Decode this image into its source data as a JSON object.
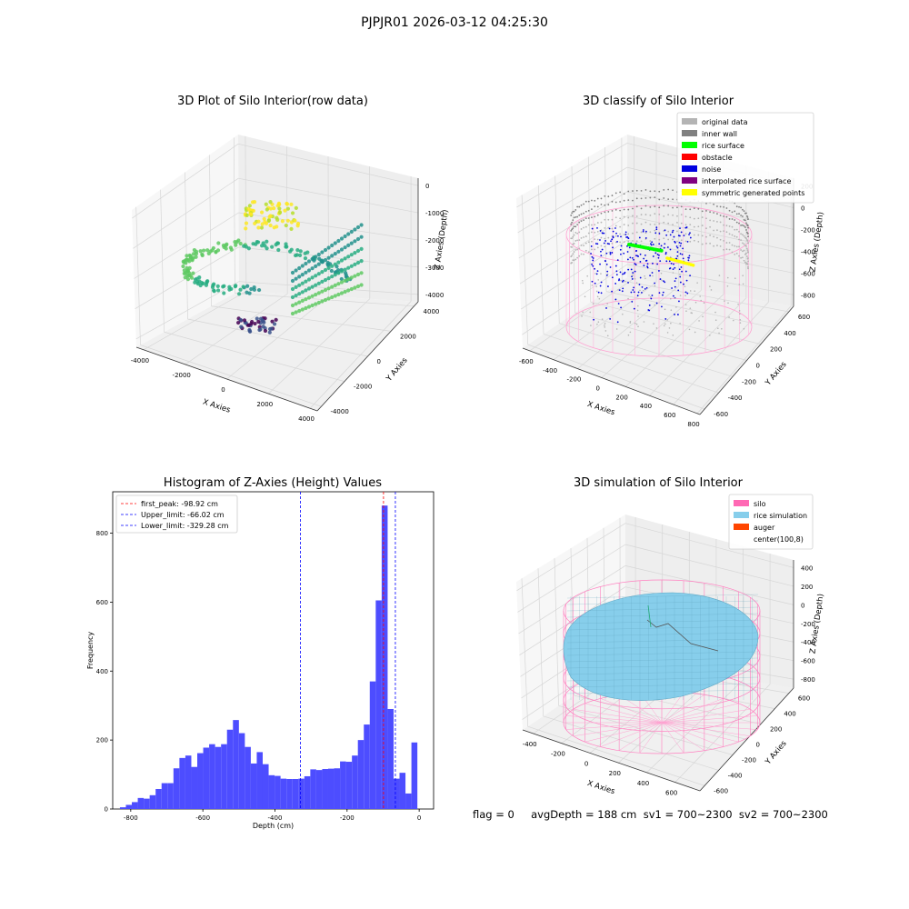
{
  "suptitle": "PJPJR01 2026-03-12 04:25:30",
  "footer": "flag = 0     avgDepth = 188 cm  sv1 = 700~2300  sv2 = 700~2300",
  "chart_data": [
    {
      "type": "scatter",
      "title": "3D Plot of Silo Interior(row data)",
      "xlabel": "X Axies",
      "ylabel": "Y Axies",
      "zlabel": "Z Axies (Depth)",
      "x_ticks": [
        -4000,
        -2000,
        0,
        2000,
        4000
      ],
      "y_ticks": [
        -4000,
        -2000,
        0,
        2000,
        4000
      ],
      "z_ticks": [
        0,
        -1000,
        -2000,
        -3000,
        -4000
      ],
      "colormap": "viridis"
    },
    {
      "type": "scatter",
      "title": "3D classify of Silo Interior",
      "xlabel": "X Axies",
      "ylabel": "Y Axies",
      "zlabel": "Z Axies (Depth)",
      "x_ticks": [
        -600,
        -400,
        -200,
        0,
        200,
        400,
        600,
        800
      ],
      "y_ticks": [
        -600,
        -400,
        -200,
        0,
        200,
        400,
        600
      ],
      "z_ticks": [
        200,
        0,
        -200,
        -400,
        -600,
        -800
      ],
      "legend_position": "top-right",
      "legend": [
        {
          "label": "original data",
          "color": "#b4b4b4"
        },
        {
          "label": "inner wall",
          "color": "#808080"
        },
        {
          "label": "rice surface",
          "color": "#00ff00"
        },
        {
          "label": "obstacle",
          "color": "#ff0000"
        },
        {
          "label": "noise",
          "color": "#0000e0"
        },
        {
          "label": "interpolated rice surface",
          "color": "#800080"
        },
        {
          "label": "symmetric generated points",
          "color": "#ffff00"
        }
      ]
    },
    {
      "type": "bar",
      "title": "Histogram of Z-Axies (Height) Values",
      "xlabel": "Depth (cm)",
      "ylabel": "Frequency",
      "xlim": [
        -850,
        40
      ],
      "ylim": [
        0,
        920
      ],
      "x_ticks": [
        -800,
        -600,
        -400,
        -200,
        0
      ],
      "y_ticks": [
        0,
        200,
        400,
        600,
        800
      ],
      "bar_color": "#4d4dff",
      "bin_start": -830,
      "bin_width": 16.5,
      "values": [
        5,
        12,
        20,
        32,
        30,
        40,
        58,
        75,
        75,
        118,
        148,
        155,
        122,
        162,
        178,
        188,
        180,
        188,
        230,
        258,
        220,
        180,
        132,
        165,
        130,
        98,
        96,
        88,
        87,
        87,
        88,
        95,
        115,
        113,
        116,
        117,
        118,
        138,
        137,
        155,
        200,
        245,
        370,
        605,
        880,
        290,
        88,
        105,
        45,
        193
      ],
      "vlines": [
        {
          "label": "first_peak: -98.92 cm",
          "x": -98.92,
          "color": "#ff0000"
        },
        {
          "label": "Upper_limit: -66.02 cm",
          "x": -66.02,
          "color": "#0000ff"
        },
        {
          "label": "Lower_limit: -329.28 cm",
          "x": -329.28,
          "color": "#0000ff"
        }
      ],
      "legend_position": "top-left"
    },
    {
      "type": "surface",
      "title": "3D simulation of Silo Interior",
      "xlabel": "X Axies",
      "ylabel": "Y Axies",
      "zlabel": "Z Axies (Depth)",
      "x_ticks": [
        -400,
        -200,
        0,
        200,
        400,
        600
      ],
      "y_ticks": [
        -600,
        -400,
        -200,
        0,
        200,
        400,
        600
      ],
      "z_ticks": [
        400,
        200,
        0,
        -200,
        -400,
        -600,
        -800
      ],
      "legend_position": "top-right",
      "legend": [
        {
          "label": "silo",
          "color": "#ff69b4"
        },
        {
          "label": "rice simulation",
          "color": "#87ceeb"
        },
        {
          "label": "auger",
          "color": "#ff4500"
        },
        {
          "label": "center(100,8)",
          "color": "#ffffff"
        }
      ]
    }
  ]
}
